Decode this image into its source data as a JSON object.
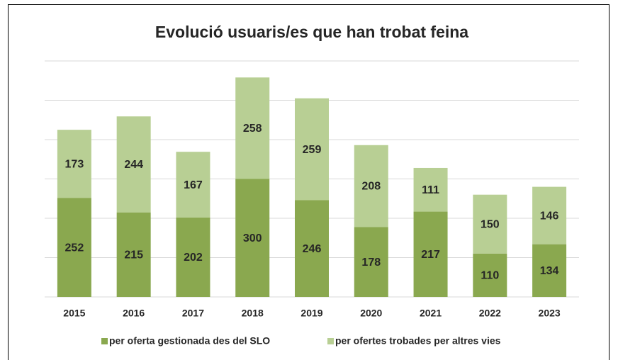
{
  "chart_data": {
    "type": "stacked_bar",
    "title": "Evolució usuaris/es que han trobat feina",
    "categories": [
      "2015",
      "2016",
      "2017",
      "2018",
      "2019",
      "2020",
      "2021",
      "2022",
      "2023"
    ],
    "series": [
      {
        "name": "per oferta gestionada des del SLO",
        "color": "#8aa84f",
        "values": [
          252,
          215,
          202,
          300,
          246,
          178,
          217,
          110,
          134
        ]
      },
      {
        "name": "per ofertes trobades per altres vies",
        "color": "#b8cf94",
        "values": [
          173,
          244,
          167,
          258,
          259,
          208,
          111,
          150,
          146
        ]
      }
    ],
    "ylim": [
      0,
      600
    ],
    "yticks": [
      0,
      100,
      200,
      300,
      400,
      500,
      600
    ],
    "grid": true,
    "legend": "bottom"
  }
}
